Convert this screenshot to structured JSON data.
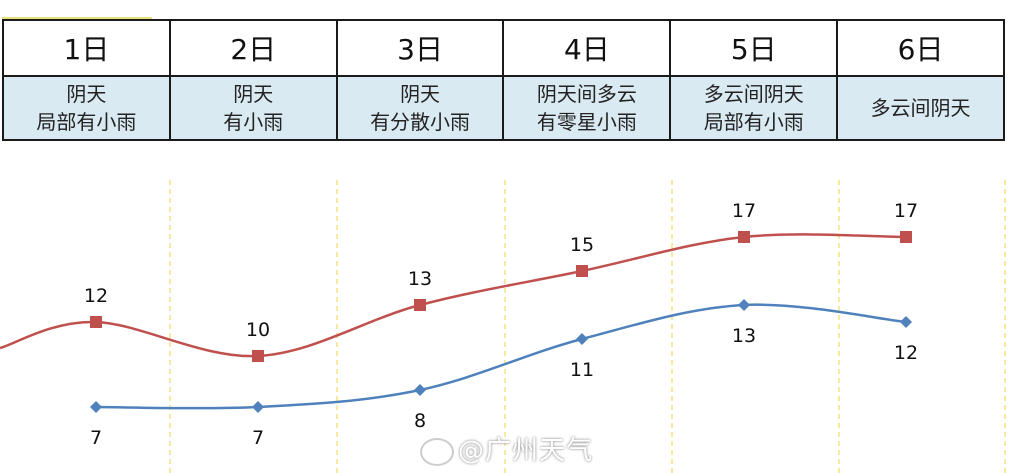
{
  "chart_data": {
    "type": "line",
    "categories": [
      "1日",
      "2日",
      "3日",
      "4日",
      "5日",
      "6日"
    ],
    "weather": [
      [
        "阴天",
        "局部有小雨"
      ],
      [
        "阴天",
        "有小雨"
      ],
      [
        "阴天",
        "有分散小雨"
      ],
      [
        "阴天间多云",
        "有零星小雨"
      ],
      [
        "多云间阴天",
        "局部有小雨"
      ],
      [
        "多云间阴天"
      ]
    ],
    "series": [
      {
        "values": [
          12,
          10,
          13,
          15,
          17,
          17
        ],
        "color": "#c0504d",
        "marker": "square",
        "labels": "above"
      },
      {
        "values": [
          7,
          7,
          8,
          11,
          13,
          12
        ],
        "color": "#4f81bd",
        "marker": "diamond",
        "labels": "below"
      }
    ],
    "grid": "vertical dashed",
    "gridColor": "#f0d040"
  },
  "watermark": "@广州天气"
}
